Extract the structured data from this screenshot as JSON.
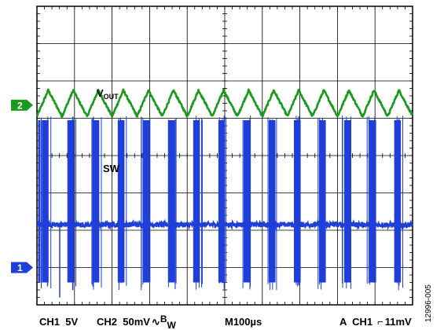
{
  "chart_data": {
    "type": "line",
    "title": "",
    "xlabel": "",
    "ylabel": "",
    "grid": true,
    "timebase": "M100µs",
    "x_range_us": [
      0,
      1000
    ],
    "series": [
      {
        "name": "VOUT",
        "label_main": "V",
        "label_sub": "OUT",
        "channel": "2",
        "color": "#1a9a1a",
        "kind": "triangle",
        "period_us": 66.7,
        "amplitude_div": 0.35,
        "center_div": 1.4,
        "phase_us": 0
      },
      {
        "name": "SW",
        "label_main": "SW",
        "channel": "1",
        "color": "#1f3fd8",
        "kind": "pulse",
        "baseline_div": -1.85,
        "high_div": 0.95,
        "low_div": -3.4,
        "pulse_width_us": 18,
        "pulse_times_us": [
          22,
          90,
          157,
          224,
          291,
          358,
          425,
          492,
          559,
          626,
          693,
          760,
          827,
          894,
          960
        ]
      }
    ],
    "markers": [
      {
        "id": "2",
        "color": "#1a9a1a",
        "level_div": 1.35
      },
      {
        "id": "1",
        "color": "#1f3fd8",
        "level_div": -3.0
      }
    ]
  },
  "footer": {
    "ch1": "CH1  5V",
    "ch2": "CH2  50mV",
    "bw_sym": "∿",
    "bw_b": "B",
    "bw_w": "W",
    "timebase": "M100µs",
    "trigger_a": "A  CH1",
    "trigger_sym": "⌐",
    "trigger_level": "11mV"
  },
  "figure_id": "12996-005"
}
